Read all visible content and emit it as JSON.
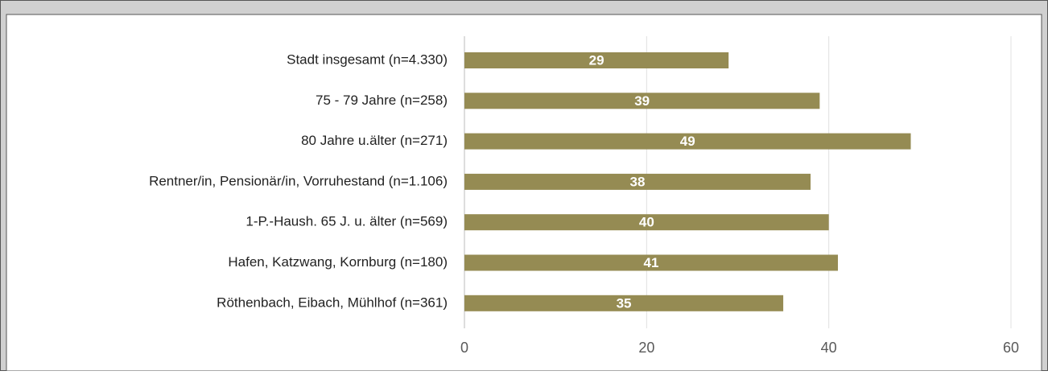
{
  "chart_data": {
    "type": "bar",
    "orientation": "horizontal",
    "categories": [
      "Stadt insgesamt (n=4.330)",
      "75 - 79 Jahre (n=258)",
      "80 Jahre u.älter (n=271)",
      "Rentner/in, Pensionär/in, Vorruhestand (n=1.106)",
      "1-P.-Haush. 65 J. u. älter (n=569)",
      "Hafen, Katzwang, Kornburg (n=180)",
      "Röthenbach, Eibach, Mühlhof (n=361)"
    ],
    "values": [
      29,
      39,
      49,
      38,
      40,
      41,
      35
    ],
    "color": "#958b53",
    "xlim": [
      0,
      60
    ],
    "xticks": [
      0,
      20,
      40,
      60
    ],
    "grid": true
  }
}
